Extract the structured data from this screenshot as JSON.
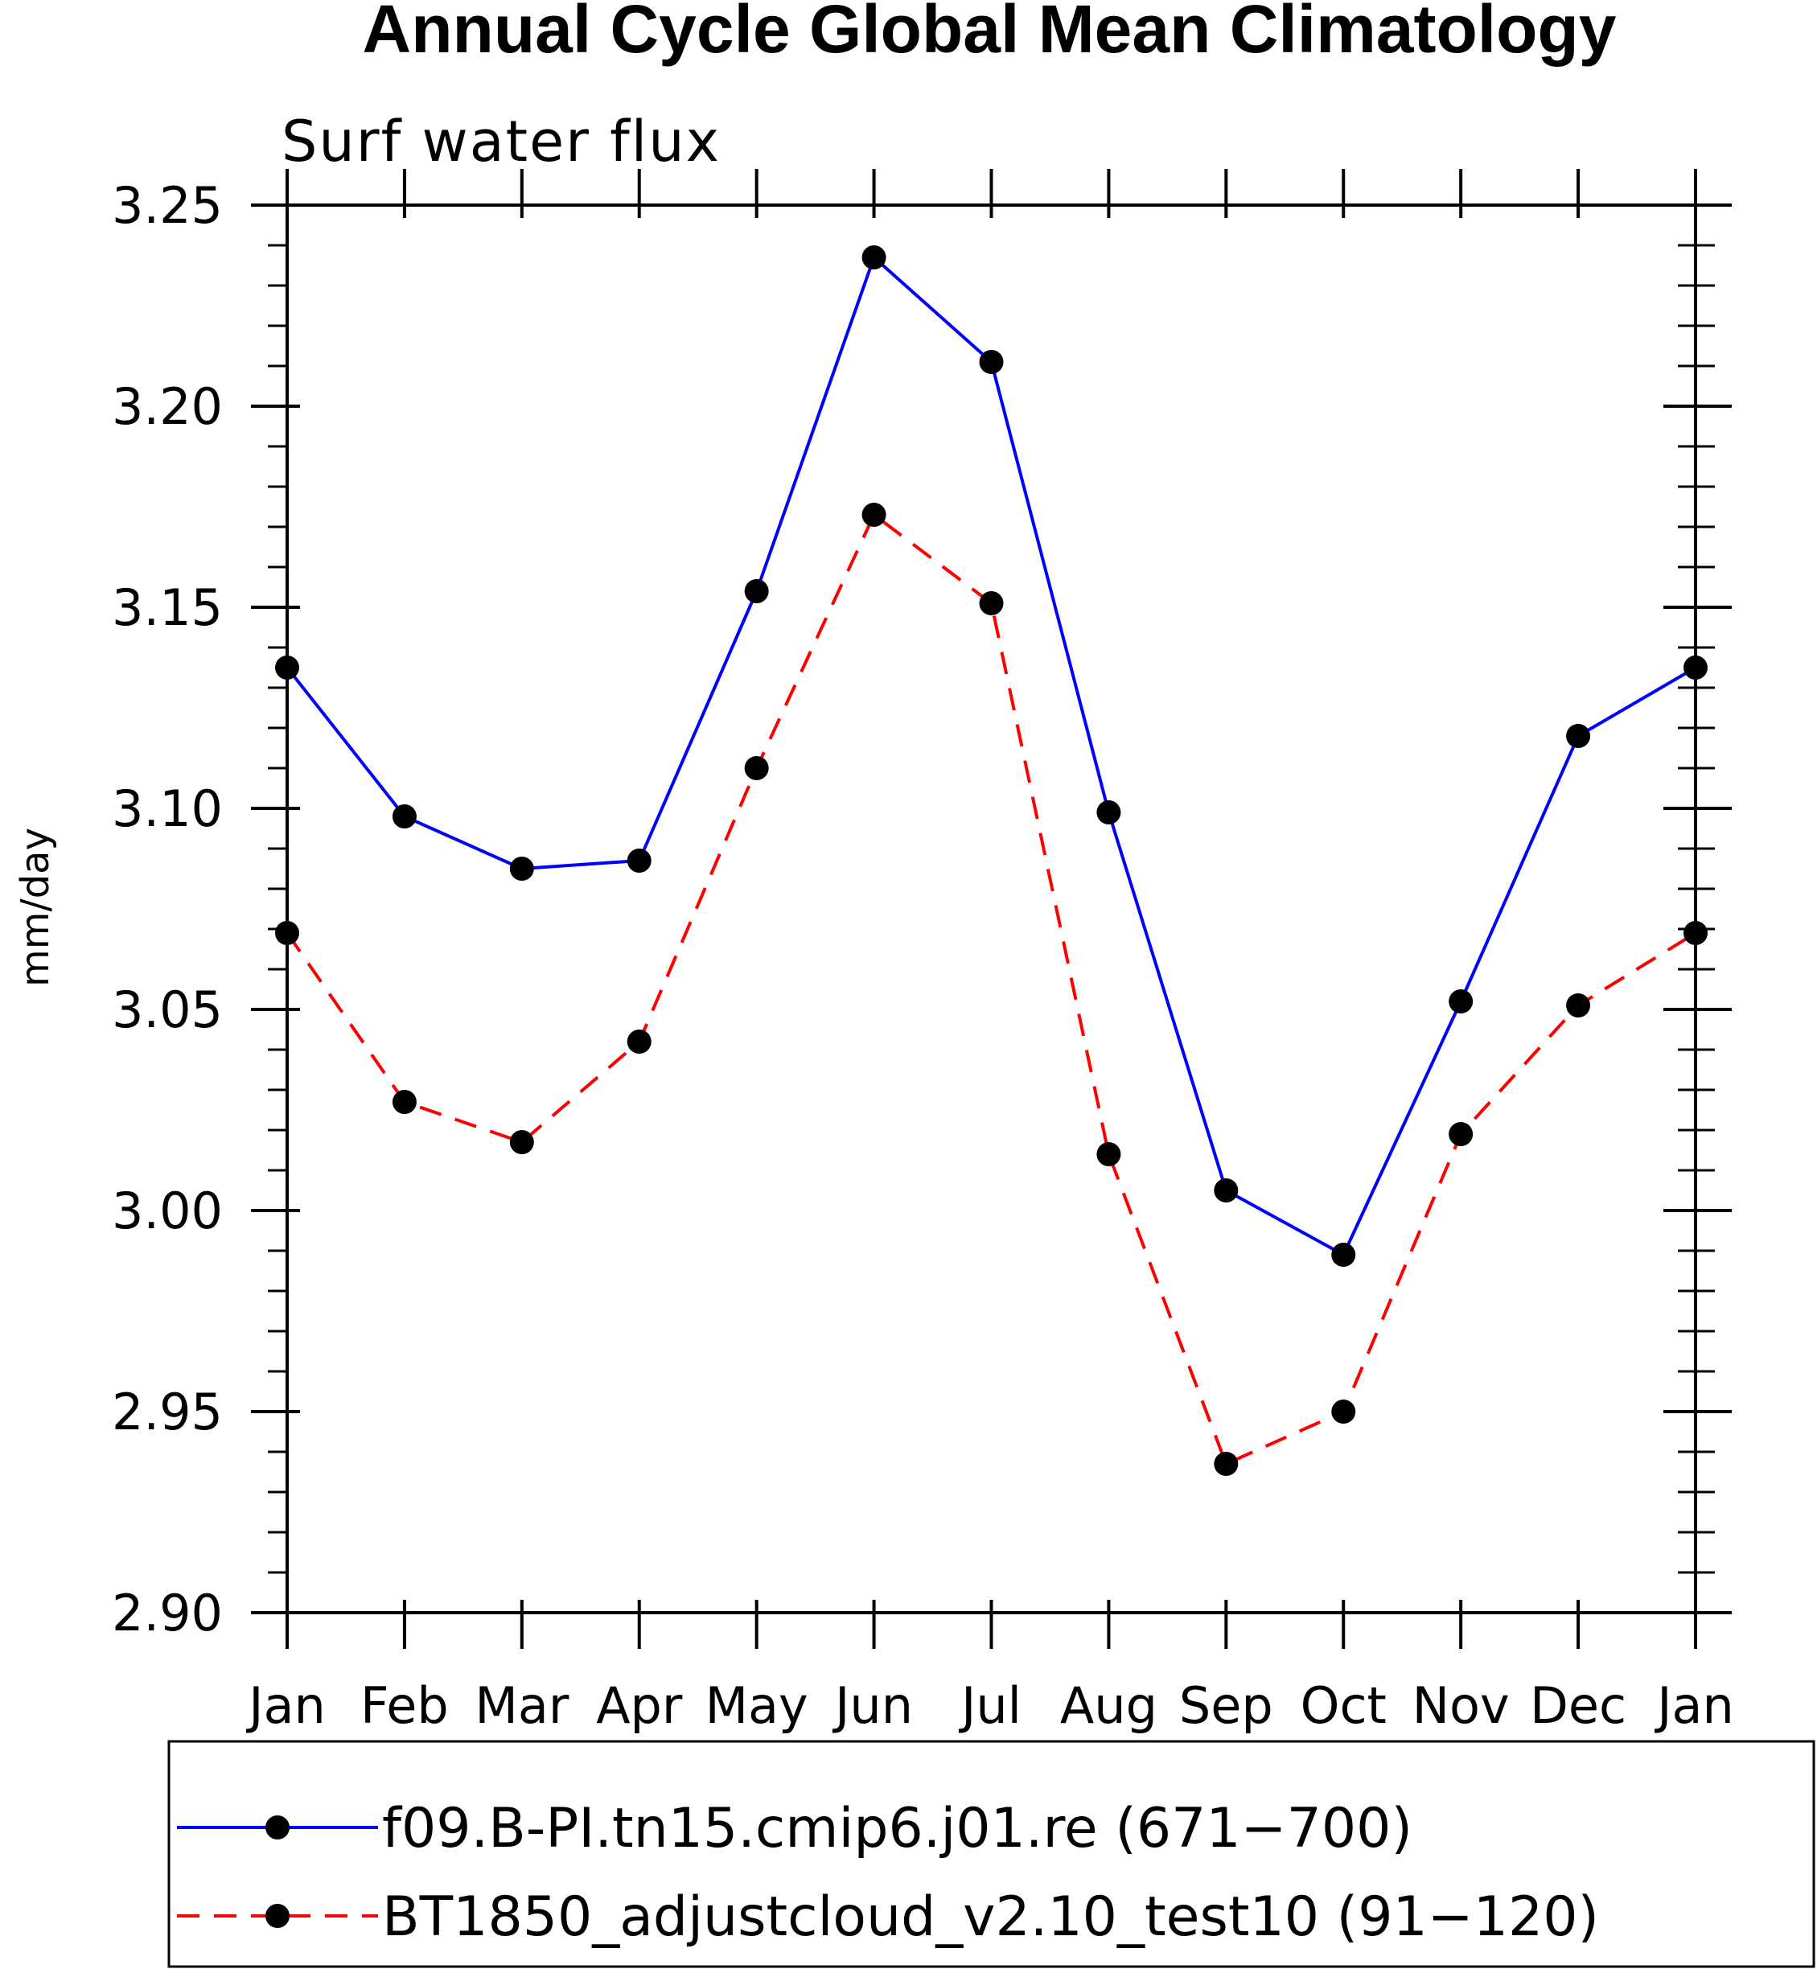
{
  "chart_data": {
    "type": "line",
    "title": "Annual Cycle Global Mean Climatology",
    "subtitle": "Surf water flux",
    "xlabel": "",
    "ylabel": "mm/day",
    "categories": [
      "Jan",
      "Feb",
      "Mar",
      "Apr",
      "May",
      "Jun",
      "Jul",
      "Aug",
      "Sep",
      "Oct",
      "Nov",
      "Dec",
      "Jan"
    ],
    "ylim": [
      2.9,
      3.25
    ],
    "yticks": [
      "2.90",
      "2.95",
      "3.00",
      "3.05",
      "3.10",
      "3.15",
      "3.20",
      "3.25"
    ],
    "series": [
      {
        "name": "f09.B-PI.tn15.cmip6.j01.re (671-700)",
        "color": "#0000ff",
        "style": "solid",
        "values": [
          3.135,
          3.098,
          3.085,
          3.087,
          3.154,
          3.237,
          3.211,
          3.099,
          3.005,
          2.989,
          3.052,
          3.118,
          3.135
        ]
      },
      {
        "name": "BT1850_adjustcloud_v2.10_test10 (91-120)",
        "color": "#ff0000",
        "style": "dashed",
        "values": [
          3.069,
          3.027,
          3.017,
          3.042,
          3.11,
          3.173,
          3.151,
          3.014,
          2.937,
          2.95,
          3.019,
          3.051,
          3.069
        ]
      }
    ],
    "marker_color": "#000000",
    "legend": {
      "items": [
        "f09.B-PI.tn15.cmip6.j01.re (671−700)",
        "BT1850_adjustcloud_v2.10_test10 (91−120)"
      ],
      "placement": "bottom"
    }
  }
}
